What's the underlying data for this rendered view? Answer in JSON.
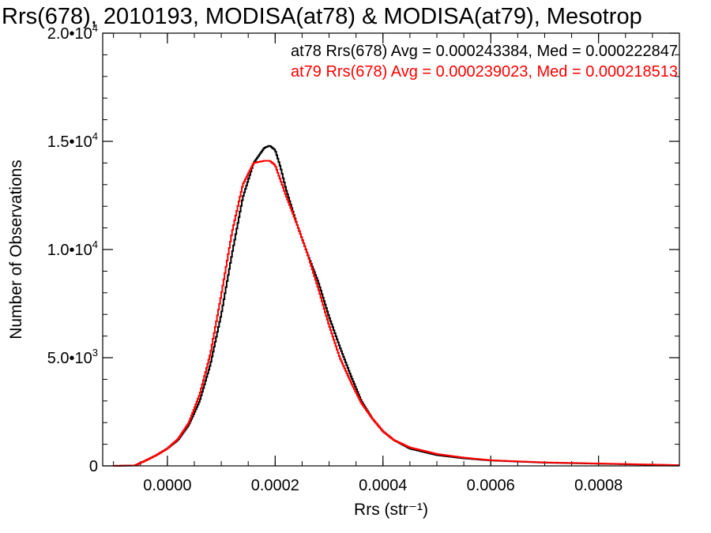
{
  "chart_data": {
    "type": "line",
    "title": "Rrs(678), 2010193, MODISA(at78) & MODISA(at79), Mesotrop",
    "xlabel": "Rrs (str⁻¹)",
    "ylabel": "Number of Observations",
    "xlim": [
      -0.00012,
      0.00095
    ],
    "ylim": [
      0,
      20000
    ],
    "x_ticks": [
      {
        "value": 0.0,
        "label": "0.0000"
      },
      {
        "value": 0.0002,
        "label": "0.0002"
      },
      {
        "value": 0.0004,
        "label": "0.0004"
      },
      {
        "value": 0.0006,
        "label": "0.0006"
      },
      {
        "value": 0.0008,
        "label": "0.0008"
      }
    ],
    "y_ticks": [
      {
        "value": 0,
        "mant": "0",
        "exp": ""
      },
      {
        "value": 5000,
        "mant": "5.0•10",
        "exp": "3"
      },
      {
        "value": 10000,
        "mant": "1.0•10",
        "exp": "4"
      },
      {
        "value": 15000,
        "mant": "1.5•10",
        "exp": "4"
      },
      {
        "value": 20000,
        "mant": "2.0•10",
        "exp": "4"
      }
    ],
    "grid": false,
    "legend": "top-right",
    "series": [
      {
        "name": "at78",
        "label": "at78 Rrs(678) Avg = 0.000243384, Med = 0.000222847",
        "color": "#000000",
        "x": [
          -0.0001,
          -6e-05,
          -4e-05,
          -2e-05,
          0.0,
          2e-05,
          4e-05,
          6e-05,
          8e-05,
          0.0001,
          0.00012,
          0.00014,
          0.00016,
          0.00018,
          0.00019,
          0.0002,
          0.00021,
          0.00022,
          0.00024,
          0.00026,
          0.00028,
          0.0003,
          0.00032,
          0.00034,
          0.00036,
          0.00038,
          0.0004,
          0.00042,
          0.00045,
          0.0005,
          0.00055,
          0.0006,
          0.0007,
          0.0008,
          0.0009,
          0.00095
        ],
        "y": [
          0,
          20,
          250,
          500,
          800,
          1200,
          1900,
          3000,
          4700,
          7000,
          9800,
          12400,
          14000,
          14700,
          14800,
          14600,
          13800,
          12800,
          11200,
          9800,
          8500,
          6900,
          5500,
          4200,
          3000,
          2200,
          1600,
          1200,
          800,
          500,
          350,
          250,
          150,
          100,
          50,
          30
        ]
      },
      {
        "name": "at79",
        "label": "at79 Rrs(678) Avg = 0.000239023, Med = 0.000218513",
        "color": "#ff0000",
        "x": [
          -0.0001,
          -6e-05,
          -4e-05,
          -2e-05,
          0.0,
          2e-05,
          4e-05,
          6e-05,
          8e-05,
          0.0001,
          0.00012,
          0.00014,
          0.00016,
          0.00018,
          0.00019,
          0.0002,
          0.00021,
          0.00022,
          0.00024,
          0.00026,
          0.00028,
          0.0003,
          0.00032,
          0.00034,
          0.00036,
          0.00038,
          0.0004,
          0.00042,
          0.00045,
          0.0005,
          0.00055,
          0.0006,
          0.0007,
          0.0008,
          0.0009,
          0.00095
        ],
        "y": [
          0,
          20,
          250,
          500,
          800,
          1250,
          2000,
          3300,
          5200,
          7900,
          10800,
          13000,
          14000,
          14100,
          14100,
          13900,
          13200,
          12500,
          11200,
          9800,
          8200,
          6500,
          5000,
          3900,
          2900,
          2200,
          1600,
          1200,
          850,
          550,
          380,
          260,
          160,
          110,
          60,
          30
        ]
      }
    ]
  }
}
